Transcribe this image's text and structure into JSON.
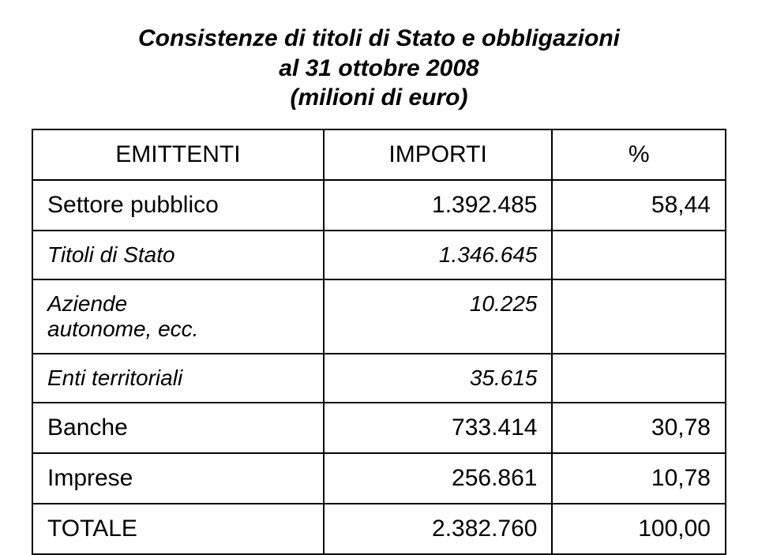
{
  "title": {
    "line1": "Consistenze di titoli di Stato e obbligazioni",
    "line2": "al 31 ottobre 2008",
    "line3": "(milioni di euro)"
  },
  "headers": {
    "col1": "EMITTENTI",
    "col2": "IMPORTI",
    "col3": "%"
  },
  "rows": {
    "settore": {
      "label": "Settore pubblico",
      "importi": "1.392.485",
      "pct": "58,44"
    },
    "titoli": {
      "label": "Titoli di Stato",
      "importi": "1.346.645",
      "pct": ""
    },
    "aziende": {
      "label_l1": "Aziende",
      "label_l2": "autonome, ecc.",
      "importi": "10.225",
      "pct": ""
    },
    "enti": {
      "label": "Enti territoriali",
      "importi": "35.615",
      "pct": ""
    },
    "banche": {
      "label": "Banche",
      "importi": "733.414",
      "pct": "30,78"
    },
    "imprese": {
      "label": "Imprese",
      "importi": "256.861",
      "pct": "10,78"
    },
    "totale": {
      "label": "TOTALE",
      "importi": "2.382.760",
      "pct": "100,00"
    }
  },
  "style": {
    "font_family": "Arial",
    "title_fontsize": 30,
    "cell_fontsize": 28,
    "border_color": "#000000",
    "background": "#ffffff"
  }
}
